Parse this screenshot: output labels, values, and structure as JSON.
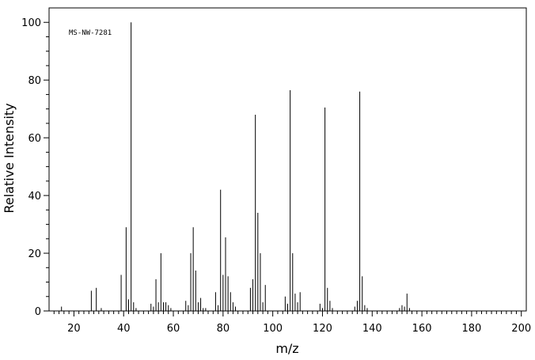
{
  "chart_data": {
    "type": "bar",
    "title": "MS-NW-7281",
    "xlabel": "m/z",
    "ylabel": "Relative Intensity",
    "xlim": [
      10,
      202
    ],
    "ylim": [
      0,
      105
    ],
    "x_ticks": [
      20,
      40,
      60,
      80,
      100,
      120,
      140,
      160,
      180,
      200
    ],
    "y_ticks": [
      0,
      20,
      40,
      60,
      80,
      100
    ],
    "grid": false,
    "legend": "none",
    "series": [
      {
        "x": [
          15,
          27,
          29,
          31,
          39,
          41,
          42,
          43,
          44,
          45,
          51,
          52,
          53,
          54,
          55,
          56,
          57,
          58,
          59,
          65,
          66,
          67,
          68,
          69,
          70,
          71,
          72,
          73,
          77,
          78,
          79,
          80,
          81,
          82,
          83,
          84,
          85,
          91,
          92,
          93,
          94,
          95,
          96,
          97,
          105,
          106,
          107,
          108,
          109,
          110,
          111,
          119,
          120,
          121,
          122,
          123,
          124,
          133,
          134,
          135,
          136,
          137,
          138,
          151,
          152,
          153,
          154,
          155
        ],
        "y": [
          1.5,
          7,
          8,
          1,
          12.5,
          29,
          4,
          100,
          3,
          1,
          2.5,
          1.5,
          11,
          3,
          20,
          3,
          3,
          2,
          1,
          3.5,
          2,
          20,
          29,
          14,
          3,
          4.5,
          1,
          1,
          6.5,
          2,
          42,
          12.5,
          25.5,
          12,
          6.5,
          3,
          1.5,
          8,
          11,
          68,
          34,
          20,
          3,
          9,
          5,
          2.5,
          76.5,
          20,
          6,
          3,
          6.5,
          2.5,
          1,
          70.5,
          8,
          3.5,
          1,
          1.5,
          3.5,
          76,
          12,
          2,
          1,
          1,
          2,
          1.5,
          6,
          1
        ]
      }
    ]
  }
}
